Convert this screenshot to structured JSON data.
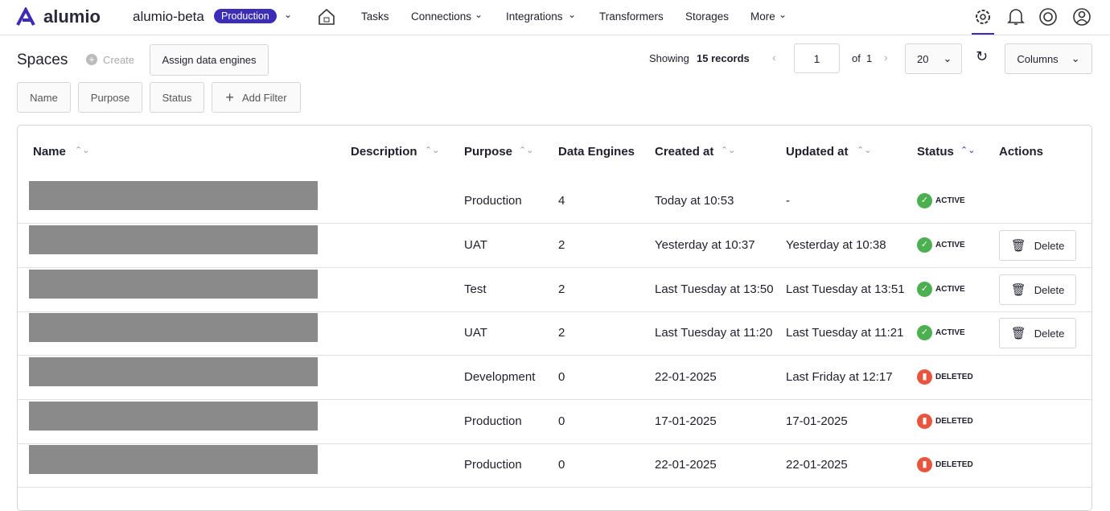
{
  "nav": {
    "brand": "alumio",
    "workspace": "alumio-beta",
    "environment": "Production",
    "items": [
      "Tasks",
      "Connections",
      "Integrations",
      "Transformers",
      "Storages",
      "More"
    ]
  },
  "toolbar": {
    "title": "Spaces",
    "create": "Create",
    "assign": "Assign data engines",
    "showing": "Showing",
    "records": "15 records",
    "page": 1,
    "of": "of",
    "total_pages": 1,
    "page_size": 20,
    "columns": "Columns"
  },
  "filters": [
    "Name",
    "Purpose",
    "Status",
    "Add Filter"
  ],
  "table": {
    "columns": [
      "Name",
      "Description",
      "Purpose",
      "Data Engines",
      "Created at",
      "Updated at",
      "Status",
      "Actions"
    ],
    "rows": [
      {
        "purpose": "Production",
        "engines": 4,
        "created": "Today at 10:53",
        "updated": "-",
        "status": "ACTIVE"
      },
      {
        "purpose": "UAT",
        "engines": 2,
        "created": "Yesterday at 10:37",
        "updated": "Yesterday at 10:38",
        "status": "ACTIVE",
        "action": "Delete"
      },
      {
        "purpose": "Test",
        "engines": 2,
        "created": "Last Tuesday at 13:50",
        "updated": "Last Tuesday at 13:51",
        "status": "ACTIVE",
        "action": "Delete"
      },
      {
        "purpose": "UAT",
        "engines": 2,
        "created": "Last Tuesday at 11:20",
        "updated": "Last Tuesday at 11:21",
        "status": "ACTIVE",
        "action": "Delete"
      },
      {
        "purpose": "Development",
        "engines": 0,
        "created": "22-01-2025",
        "updated": "Last Friday at 12:17",
        "status": "DELETED"
      },
      {
        "purpose": "Production",
        "engines": 0,
        "created": "17-01-2025",
        "updated": "17-01-2025",
        "status": "DELETED"
      },
      {
        "purpose": "Production",
        "engines": 0,
        "created": "22-01-2025",
        "updated": "22-01-2025",
        "status": "DELETED"
      }
    ]
  }
}
